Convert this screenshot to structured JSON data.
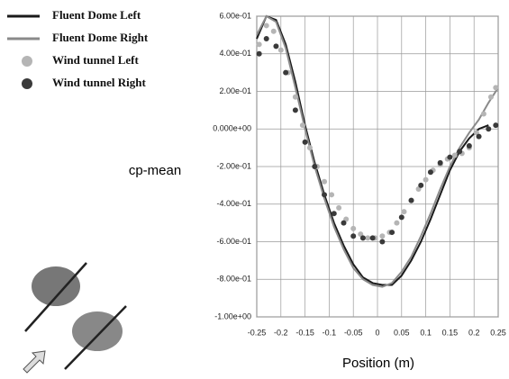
{
  "chart_data": {
    "type": "line",
    "y_label": "cp-mean",
    "x_label": "Position (m)",
    "xlim": [
      -0.25,
      0.25
    ],
    "xticks": [
      -0.25,
      -0.2,
      -0.15,
      -0.1,
      -0.05,
      0,
      0.05,
      0.1,
      0.15,
      0.2,
      0.25
    ],
    "ylim": [
      -1,
      0.6
    ],
    "yticks": [
      {
        "value": 0.6,
        "label": "6.00e-01"
      },
      {
        "value": 0.4,
        "label": "4.00e-01"
      },
      {
        "value": 0.2,
        "label": "2.00e-01"
      },
      {
        "value": 0,
        "label": "0.000e+00"
      },
      {
        "value": -0.2,
        "label": "-2.00e-01"
      },
      {
        "value": -0.4,
        "label": "-4.00e-01"
      },
      {
        "value": -0.6,
        "label": "-6.00e-01"
      },
      {
        "value": -0.8,
        "label": "-8.00e-01"
      },
      {
        "value": -1,
        "label": "-1.00e+00"
      }
    ],
    "grid": true,
    "legend": "upper-left",
    "series": [
      {
        "name": "Fluent Dome Left",
        "kind": "line",
        "color": "#1a1a1a",
        "x": [
          -0.25,
          -0.23,
          -0.21,
          -0.19,
          -0.17,
          -0.15,
          -0.13,
          -0.11,
          -0.09,
          -0.07,
          -0.05,
          -0.03,
          -0.01,
          0.01,
          0.03,
          0.05,
          0.07,
          0.09,
          0.11,
          0.13,
          0.15,
          0.17,
          0.19,
          0.21,
          0.23
        ],
        "values": [
          0.48,
          0.6,
          0.58,
          0.45,
          0.25,
          0.02,
          -0.18,
          -0.35,
          -0.5,
          -0.62,
          -0.72,
          -0.79,
          -0.82,
          -0.83,
          -0.83,
          -0.78,
          -0.7,
          -0.6,
          -0.48,
          -0.35,
          -0.22,
          -0.12,
          -0.05,
          0,
          0.02
        ]
      },
      {
        "name": "Fluent Dome Right",
        "kind": "line",
        "color": "#8a8a8a",
        "x": [
          -0.25,
          -0.23,
          -0.21,
          -0.19,
          -0.17,
          -0.15,
          -0.13,
          -0.11,
          -0.09,
          -0.07,
          -0.05,
          -0.03,
          -0.01,
          0.01,
          0.03,
          0.05,
          0.07,
          0.09,
          0.11,
          0.13,
          0.15,
          0.17,
          0.19,
          0.21,
          0.23,
          0.25
        ],
        "values": [
          0.5,
          0.6,
          0.57,
          0.43,
          0.22,
          0,
          -0.2,
          -0.37,
          -0.52,
          -0.64,
          -0.74,
          -0.8,
          -0.83,
          -0.84,
          -0.82,
          -0.76,
          -0.68,
          -0.57,
          -0.45,
          -0.32,
          -0.2,
          -0.1,
          -0.02,
          0.05,
          0.14,
          0.22
        ]
      },
      {
        "name": "Wind tunnel Left",
        "kind": "scatter",
        "color": "#b5b5b5",
        "x": [
          -0.245,
          -0.23,
          -0.215,
          -0.2,
          -0.185,
          -0.17,
          -0.155,
          -0.14,
          -0.125,
          -0.11,
          -0.095,
          -0.08,
          -0.065,
          -0.05,
          -0.035,
          -0.02,
          -0.005,
          0.01,
          0.025,
          0.04,
          0.055,
          0.07,
          0.085,
          0.1,
          0.115,
          0.13,
          0.145,
          0.16,
          0.175,
          0.19,
          0.205,
          0.22,
          0.235,
          0.245
        ],
        "values": [
          0.45,
          0.55,
          0.52,
          0.42,
          0.3,
          0.17,
          0.02,
          -0.1,
          -0.2,
          -0.28,
          -0.35,
          -0.42,
          -0.48,
          -0.53,
          -0.56,
          -0.58,
          -0.58,
          -0.57,
          -0.55,
          -0.5,
          -0.44,
          -0.38,
          -0.32,
          -0.27,
          -0.22,
          -0.19,
          -0.16,
          -0.14,
          -0.13,
          -0.1,
          -0.02,
          0.08,
          0.17,
          0.22
        ]
      },
      {
        "name": "Wind tunnel Right",
        "kind": "scatter",
        "color": "#3a3a3a",
        "x": [
          -0.245,
          -0.23,
          -0.21,
          -0.19,
          -0.17,
          -0.15,
          -0.13,
          -0.11,
          -0.09,
          -0.07,
          -0.05,
          -0.03,
          -0.01,
          0.01,
          0.03,
          0.05,
          0.07,
          0.09,
          0.11,
          0.13,
          0.15,
          0.17,
          0.19,
          0.21,
          0.23,
          0.245
        ],
        "values": [
          0.4,
          0.48,
          0.44,
          0.3,
          0.1,
          -0.07,
          -0.2,
          -0.35,
          -0.45,
          -0.5,
          -0.57,
          -0.58,
          -0.58,
          -0.6,
          -0.55,
          -0.47,
          -0.38,
          -0.3,
          -0.23,
          -0.18,
          -0.15,
          -0.12,
          -0.09,
          -0.04,
          0,
          0.02
        ]
      }
    ]
  }
}
